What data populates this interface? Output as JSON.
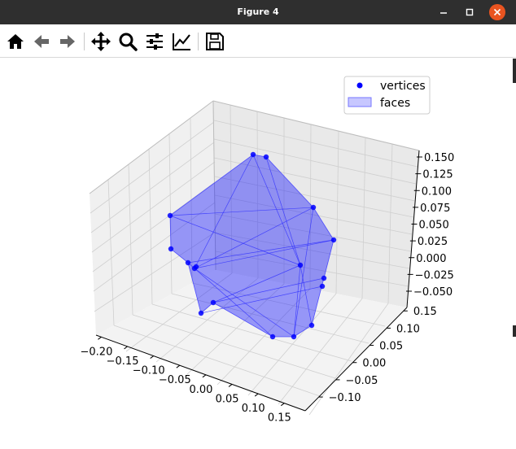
{
  "window": {
    "title": "Figure 4",
    "controls": [
      "minimize-icon",
      "maximize-icon",
      "close-icon"
    ]
  },
  "toolbar": {
    "buttons": [
      {
        "name": "home",
        "icon": "home-icon"
      },
      {
        "name": "back",
        "icon": "arrow-left-icon"
      },
      {
        "name": "forward",
        "icon": "arrow-right-icon"
      },
      {
        "name": "pan",
        "icon": "move-icon"
      },
      {
        "name": "zoom",
        "icon": "magnifier-icon"
      },
      {
        "name": "configure-subplots",
        "icon": "sliders-icon"
      },
      {
        "name": "edit-axis",
        "icon": "line-chart-icon"
      },
      {
        "name": "save",
        "icon": "floppy-disk-icon"
      }
    ]
  },
  "chart_data": {
    "type": "scatter3d",
    "legend": {
      "placement": "top-right",
      "entries": [
        {
          "label": "vertices",
          "marker": "point",
          "color": "#0000ff"
        },
        {
          "label": "faces",
          "marker": "patch",
          "color": "#0000ff",
          "alpha": 0.25
        }
      ]
    },
    "x_ticks": [
      "−0.20",
      "−0.15",
      "−0.10",
      "−0.05",
      "0.00",
      "0.05",
      "0.10",
      "0.15"
    ],
    "y_ticks": [
      "0.15",
      "0.10",
      "0.05",
      "0.00",
      "−0.05",
      "−0.10"
    ],
    "z_ticks": [
      "0.150",
      "0.125",
      "0.100",
      "0.075",
      "0.050",
      "0.025",
      "0.000",
      "−0.025",
      "−0.050"
    ],
    "xlim": [
      -0.2,
      0.15
    ],
    "ylim": [
      -0.12,
      0.17
    ],
    "zlim": [
      -0.05,
      0.15
    ],
    "grid": true,
    "series": [
      {
        "label": "vertices",
        "color": "#0000ff",
        "points": [
          [
            0.02,
            0.1,
            0.16
          ],
          [
            0.05,
            0.1,
            0.16
          ],
          [
            0.12,
            0.04,
            0.07
          ],
          [
            -0.17,
            0.1,
            0.08
          ],
          [
            -0.16,
            0.08,
            0.03
          ],
          [
            -0.12,
            0.05,
            0.01
          ],
          [
            -0.11,
            0.04,
            0.0
          ],
          [
            -0.1,
            0.06,
            0.0
          ],
          [
            0.14,
            -0.03,
            0.05
          ],
          [
            0.04,
            -0.05,
            0.0
          ],
          [
            0.07,
            -0.12,
            0.0
          ],
          [
            0.08,
            -0.12,
            -0.02
          ],
          [
            -0.11,
            0.05,
            -0.04
          ],
          [
            -0.12,
            0.06,
            -0.07
          ],
          [
            -0.02,
            -0.1,
            -0.04
          ],
          [
            0.02,
            -0.12,
            -0.04
          ],
          [
            0.04,
            -0.08,
            -0.07
          ]
        ]
      }
    ]
  }
}
